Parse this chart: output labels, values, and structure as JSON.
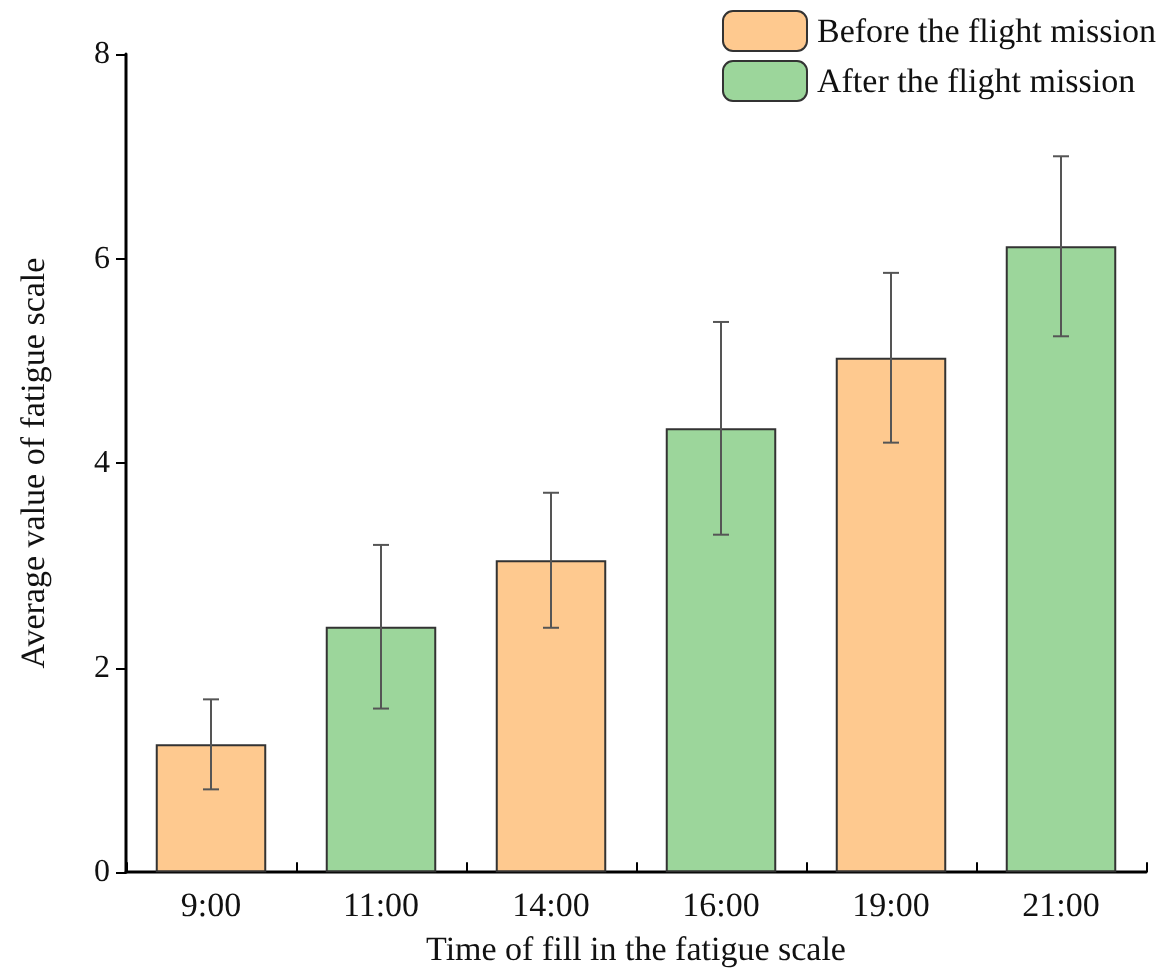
{
  "chart_data": {
    "type": "bar",
    "xlabel": "Time of fill in the fatigue scale",
    "ylabel": "Average value of fatigue scale",
    "categories": [
      "9:00",
      "11:00",
      "14:00",
      "16:00",
      "19:00",
      "21:00"
    ],
    "series": [
      {
        "name": "Before the flight mission",
        "color": "#fec98f",
        "values": [
          1.25,
          null,
          3.05,
          null,
          5.03,
          null
        ],
        "errors": [
          0.44,
          null,
          0.66,
          null,
          0.83,
          null
        ]
      },
      {
        "name": "After the flight mission",
        "color": "#9cd69b",
        "values": [
          null,
          2.4,
          null,
          4.34,
          null,
          6.12
        ],
        "errors": [
          null,
          0.8,
          null,
          1.04,
          null,
          0.88
        ]
      }
    ],
    "ylim": [
      0,
      8
    ],
    "yticks": [
      0,
      2,
      4,
      6,
      8
    ],
    "grid": false,
    "legend": "top right"
  }
}
